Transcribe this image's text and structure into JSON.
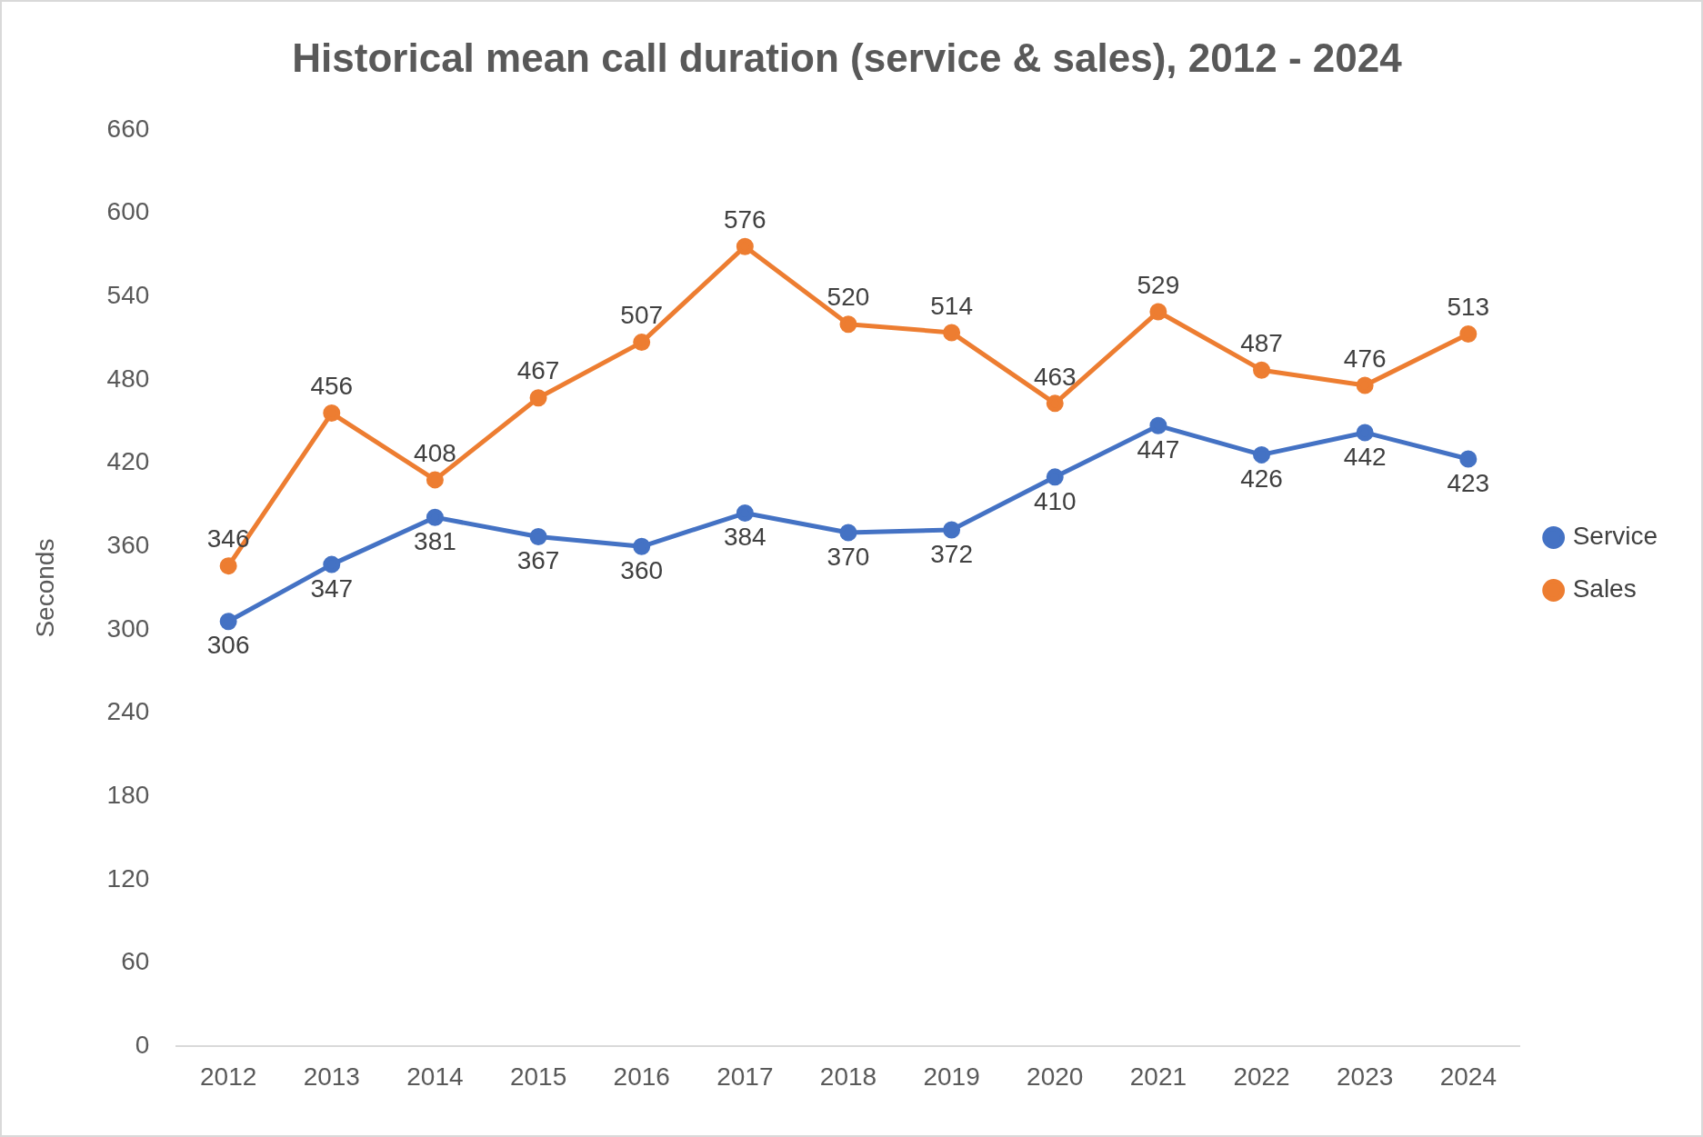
{
  "chart_data": {
    "type": "line",
    "title": "Historical mean call duration (service & sales), 2012 - 2024",
    "ylabel": "Seconds",
    "categories": [
      "2012",
      "2013",
      "2014",
      "2015",
      "2016",
      "2017",
      "2018",
      "2019",
      "2020",
      "2021",
      "2022",
      "2023",
      "2024"
    ],
    "series": [
      {
        "name": "Service",
        "color": "#4472c4",
        "values": [
          306,
          347,
          381,
          367,
          360,
          384,
          370,
          372,
          410,
          447,
          426,
          442,
          423
        ]
      },
      {
        "name": "Sales",
        "color": "#ed7d31",
        "values": [
          346,
          456,
          408,
          467,
          507,
          576,
          520,
          514,
          463,
          529,
          487,
          476,
          513
        ]
      }
    ],
    "ylim": [
      0,
      660
    ],
    "yticks": [
      0,
      60,
      120,
      180,
      240,
      300,
      360,
      420,
      480,
      540,
      600,
      660
    ],
    "grid": false,
    "legend": "right",
    "marker": "circle",
    "line_style": "solid",
    "data_labels": true
  }
}
